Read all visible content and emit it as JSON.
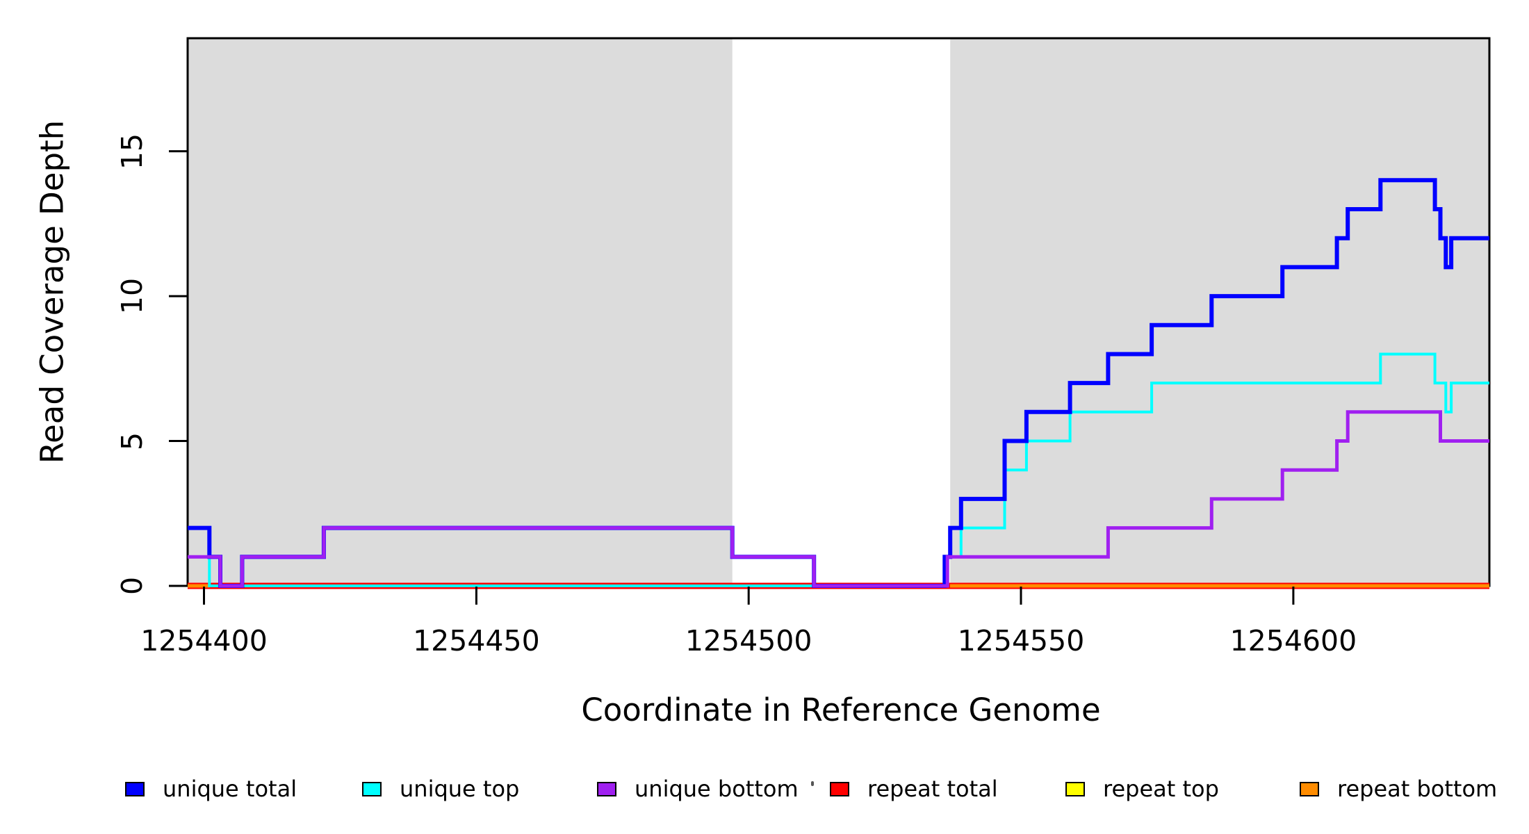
{
  "axes": {
    "x_title": "Coordinate in Reference Genome",
    "y_title": "Read Coverage Depth",
    "x_tick_labels": [
      "1254400",
      "1254450",
      "1254500",
      "1254550",
      "1254600"
    ],
    "y_tick_labels": [
      "0",
      "5",
      "10",
      "15"
    ]
  },
  "legend": {
    "items": [
      {
        "label": "unique total",
        "color": "#0000FF"
      },
      {
        "label": "unique top",
        "color": "#00FFFF"
      },
      {
        "label": "unique bottom",
        "color": "#A020F0"
      },
      {
        "label": "repeat total",
        "color": "#FF0000"
      },
      {
        "label": "repeat top",
        "color": "#FFFF00"
      },
      {
        "label": "repeat bottom",
        "color": "#FF8C00"
      }
    ]
  },
  "chart_data": {
    "type": "line",
    "subtype": "step-after-coverage",
    "title": "",
    "xlabel": "Coordinate in Reference Genome",
    "ylabel": "Read Coverage Depth",
    "xlim": [
      1254397,
      1254636
    ],
    "ylim": [
      0,
      18.9
    ],
    "x_ticks": [
      1254400,
      1254450,
      1254500,
      1254550,
      1254600
    ],
    "y_ticks": [
      0,
      5,
      10,
      15
    ],
    "grid": false,
    "legend_position": "bottom",
    "shade_color": "#DCDCDC",
    "shaded_regions": [
      {
        "from": 1254397,
        "to": 1254497
      },
      {
        "from": 1254537,
        "to": 1254636
      }
    ],
    "series": [
      {
        "name": "repeat total",
        "color": "#FF0000",
        "width": 9,
        "segments": [
          [
            [
              1254397,
              0
            ],
            [
              1254636,
              0
            ]
          ]
        ]
      },
      {
        "name": "repeat top",
        "color": "#FFFF00",
        "width": 5,
        "segments": [
          [
            [
              1254397,
              0
            ],
            [
              1254401,
              0
            ]
          ],
          [
            [
              1254537,
              0
            ],
            [
              1254636,
              0
            ]
          ]
        ]
      },
      {
        "name": "repeat bottom",
        "color": "#FF8C00",
        "width": 5,
        "segments": [
          [
            [
              1254397,
              0
            ],
            [
              1254401,
              0
            ]
          ],
          [
            [
              1254537,
              0
            ],
            [
              1254636,
              0
            ]
          ]
        ]
      },
      {
        "name": "unique top",
        "color": "#00FFFF",
        "width": 4,
        "segments": [
          [
            [
              1254397,
              1
            ],
            [
              1254401,
              0
            ],
            [
              1254536,
              1
            ],
            [
              1254539,
              2
            ],
            [
              1254547,
              4
            ],
            [
              1254551,
              5
            ],
            [
              1254559,
              6
            ],
            [
              1254574,
              7
            ],
            [
              1254616,
              8
            ],
            [
              1254626,
              7
            ],
            [
              1254628,
              6
            ],
            [
              1254629,
              7
            ],
            [
              1254636,
              7
            ]
          ]
        ]
      },
      {
        "name": "unique total",
        "color": "#0000FF",
        "width": 6,
        "segments": [
          [
            [
              1254397,
              2
            ],
            [
              1254401,
              1
            ],
            [
              1254403,
              0
            ],
            [
              1254407,
              1
            ],
            [
              1254422,
              2
            ],
            [
              1254497,
              1
            ],
            [
              1254512,
              0
            ],
            [
              1254536,
              1
            ],
            [
              1254537,
              2
            ],
            [
              1254539,
              3
            ],
            [
              1254547,
              5
            ],
            [
              1254551,
              6
            ],
            [
              1254559,
              7
            ],
            [
              1254566,
              8
            ],
            [
              1254574,
              9
            ],
            [
              1254585,
              10
            ],
            [
              1254598,
              11
            ],
            [
              1254608,
              12
            ],
            [
              1254610,
              13
            ],
            [
              1254616,
              14
            ],
            [
              1254626,
              13
            ],
            [
              1254627,
              12
            ],
            [
              1254628,
              11
            ],
            [
              1254629,
              12
            ],
            [
              1254636,
              12
            ]
          ]
        ]
      },
      {
        "name": "unique bottom",
        "color": "#A020F0",
        "width": 5,
        "segments": [
          [
            [
              1254397,
              1
            ],
            [
              1254403,
              0
            ],
            [
              1254407,
              1
            ],
            [
              1254422,
              2
            ],
            [
              1254497,
              1
            ],
            [
              1254512,
              0
            ],
            [
              1254536.5,
              1
            ],
            [
              1254566,
              2
            ],
            [
              1254585,
              3
            ],
            [
              1254598,
              4
            ],
            [
              1254608,
              5
            ],
            [
              1254610,
              6
            ],
            [
              1254627,
              5
            ],
            [
              1254636,
              5
            ]
          ]
        ]
      }
    ]
  }
}
